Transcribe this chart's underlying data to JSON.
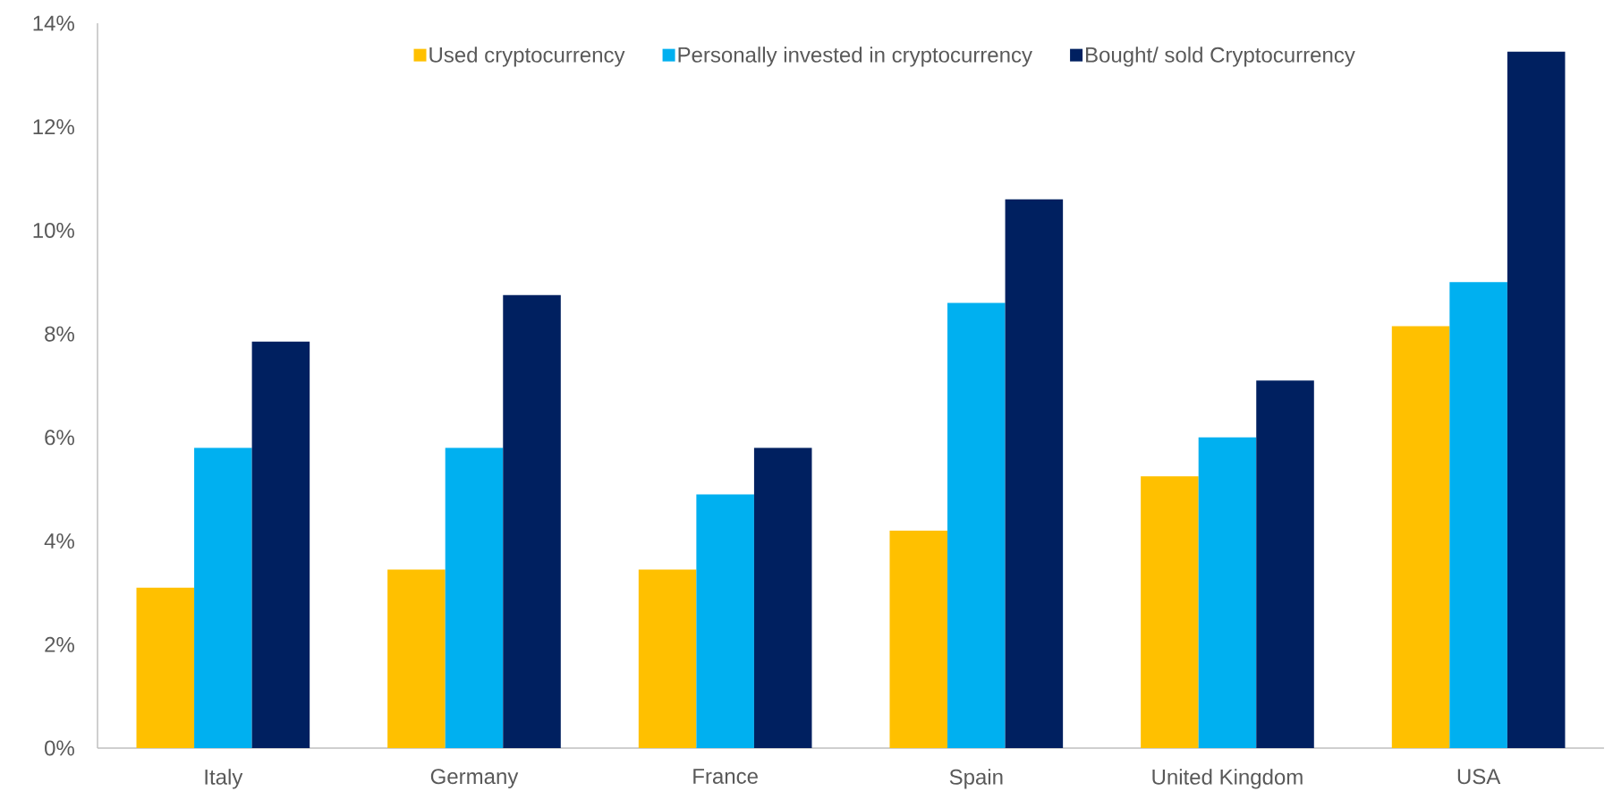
{
  "chart_data": {
    "type": "bar",
    "categories": [
      "Italy",
      "Germany",
      "France",
      "Spain",
      "United Kingdom",
      "USA"
    ],
    "series": [
      {
        "name": "Used cryptocurrency",
        "color": "#ffc000",
        "values": [
          3.1,
          3.45,
          3.45,
          4.2,
          5.25,
          8.15
        ]
      },
      {
        "name": "Personally invested in cryptocurrency",
        "color": "#00b0f0",
        "values": [
          5.8,
          5.8,
          4.9,
          8.6,
          6.0,
          9.0
        ]
      },
      {
        "name": "Bought/ sold Cryptocurrency",
        "color": "#002060",
        "values": [
          7.85,
          8.75,
          5.8,
          10.6,
          7.1,
          13.45
        ]
      }
    ],
    "ylim": [
      0,
      14
    ],
    "yticks": [
      {
        "value": 0,
        "label": "0%"
      },
      {
        "value": 2,
        "label": "2%"
      },
      {
        "value": 4,
        "label": "4%"
      },
      {
        "value": 6,
        "label": "6%"
      },
      {
        "value": 8,
        "label": "8%"
      },
      {
        "value": 10,
        "label": "10%"
      },
      {
        "value": 12,
        "label": "12%"
      },
      {
        "value": 14,
        "label": "14%"
      }
    ],
    "legend": "top"
  }
}
